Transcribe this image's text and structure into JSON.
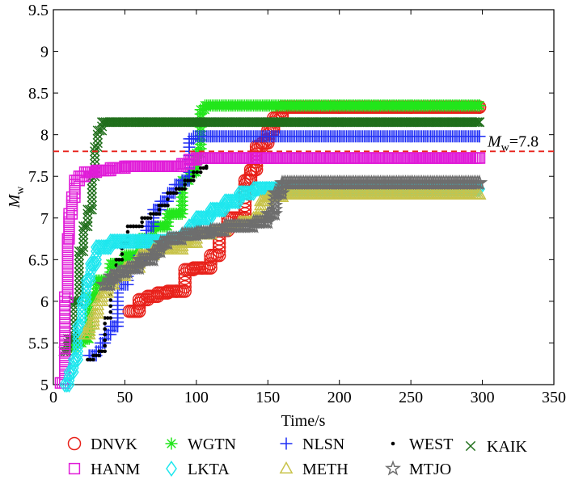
{
  "chart_data": {
    "type": "scatter",
    "title": "",
    "xlabel": "Time/s",
    "ylabel": "Mw",
    "ylabel_main": "M",
    "ylabel_sub": "w",
    "xlim": [
      0,
      350
    ],
    "ylim": [
      5,
      9.5
    ],
    "xticks": [
      0,
      50,
      100,
      150,
      200,
      250,
      300,
      350
    ],
    "yticks": [
      5,
      5.5,
      6,
      6.5,
      7,
      7.5,
      8,
      8.5,
      9,
      9.5
    ],
    "grid": false,
    "reference_line": {
      "y": 7.8,
      "color": "#e8211a",
      "style": "dashed",
      "label": "=7.8",
      "label_main": "M",
      "label_sub": "w"
    },
    "legend_position": "bottom",
    "series": [
      {
        "name": "DNVK",
        "marker": "circle",
        "color": "#e8211a",
        "x": [
          53,
          60,
          66,
          73,
          80,
          86,
          92,
          98,
          104,
          110,
          116,
          122,
          128,
          134,
          138,
          142,
          146,
          150,
          154,
          160,
          200,
          250,
          298
        ],
        "y": [
          5.88,
          6.02,
          6.06,
          6.1,
          6.12,
          6.12,
          6.38,
          6.4,
          6.4,
          6.55,
          6.85,
          7.0,
          7.0,
          7.45,
          7.58,
          7.86,
          7.9,
          8.05,
          8.2,
          8.33,
          8.33,
          8.33,
          8.33
        ]
      },
      {
        "name": "WGTN",
        "marker": "asterisk",
        "color": "#22e61b",
        "x": [
          10,
          15,
          20,
          25,
          30,
          40,
          50,
          60,
          70,
          80,
          90,
          95,
          100,
          103,
          106,
          120,
          150,
          200,
          250,
          298
        ],
        "y": [
          5.45,
          5.5,
          5.55,
          6.05,
          6.25,
          6.45,
          6.55,
          6.75,
          6.9,
          7.05,
          7.45,
          7.55,
          7.78,
          8.3,
          8.35,
          8.35,
          8.35,
          8.35,
          8.35,
          8.35
        ]
      },
      {
        "name": "NLSN",
        "marker": "plus",
        "color": "#1f2ef5",
        "x": [
          25,
          30,
          33,
          36,
          40,
          45,
          52,
          60,
          65,
          70,
          75,
          80,
          85,
          90,
          95,
          98,
          110,
          150,
          200,
          250,
          298
        ],
        "y": [
          5.35,
          5.4,
          5.5,
          5.6,
          5.7,
          6.2,
          6.4,
          6.55,
          6.9,
          7.1,
          7.2,
          7.3,
          7.4,
          7.45,
          7.95,
          7.98,
          7.98,
          7.98,
          7.98,
          7.98,
          7.98
        ]
      },
      {
        "name": "WEST",
        "marker": "dot",
        "color": "#000000",
        "x": [
          24,
          28,
          32,
          36,
          40,
          44,
          48,
          52,
          56,
          62,
          68,
          74,
          80,
          86,
          92,
          98,
          103,
          107
        ],
        "y": [
          5.3,
          5.35,
          5.4,
          5.8,
          6.3,
          6.5,
          6.7,
          6.9,
          6.9,
          7.0,
          7.05,
          7.15,
          7.3,
          7.35,
          7.45,
          7.55,
          7.6,
          7.62
        ]
      },
      {
        "name": "KAIK",
        "marker": "x",
        "color": "#1f6e1a",
        "x": [
          7,
          10,
          14,
          18,
          21,
          24,
          27,
          29,
          31,
          34,
          60,
          100,
          150,
          200,
          250,
          298
        ],
        "y": [
          5.4,
          5.55,
          6.0,
          6.6,
          6.9,
          7.1,
          7.5,
          7.85,
          8.05,
          8.15,
          8.15,
          8.15,
          8.15,
          8.15,
          8.15,
          8.15
        ]
      },
      {
        "name": "HANM",
        "marker": "square",
        "color": "#e01bd8",
        "x": [
          5,
          8,
          10,
          11,
          13,
          15,
          18,
          22,
          30,
          40,
          50,
          60,
          70,
          80,
          90,
          95,
          100,
          150,
          200,
          250,
          298
        ],
        "y": [
          5.02,
          6.05,
          6.75,
          7.05,
          7.25,
          7.45,
          7.5,
          7.55,
          7.57,
          7.6,
          7.62,
          7.62,
          7.62,
          7.62,
          7.65,
          7.7,
          7.72,
          7.72,
          7.72,
          7.72,
          7.72
        ]
      },
      {
        "name": "LKTA",
        "marker": "diamond",
        "color": "#1ee7ee",
        "x": [
          8,
          11,
          14,
          17,
          20,
          23,
          26,
          30,
          40,
          50,
          60,
          70,
          80,
          90,
          95,
          100,
          110,
          120,
          130,
          140,
          150,
          200,
          250,
          298
        ],
        "y": [
          5.0,
          5.15,
          5.3,
          5.7,
          6.0,
          6.25,
          6.45,
          6.65,
          6.72,
          6.72,
          6.72,
          6.72,
          6.75,
          6.8,
          6.9,
          7.0,
          7.1,
          7.2,
          7.3,
          7.35,
          7.35,
          7.35,
          7.35,
          7.35
        ]
      },
      {
        "name": "METH",
        "marker": "triangle",
        "color": "#c8c34a",
        "x": [
          22,
          25,
          28,
          31,
          34,
          38,
          42,
          50,
          60,
          70,
          80,
          90,
          100,
          110,
          120,
          130,
          140,
          145,
          150,
          160,
          200,
          250,
          298
        ],
        "y": [
          5.6,
          5.72,
          5.85,
          6.0,
          6.1,
          6.2,
          6.3,
          6.4,
          6.55,
          6.62,
          6.62,
          6.7,
          6.8,
          6.85,
          6.9,
          6.95,
          7.0,
          7.2,
          7.25,
          7.28,
          7.28,
          7.28,
          7.28
        ]
      },
      {
        "name": "MTJO",
        "marker": "star",
        "color": "#6e6e6e",
        "x": [
          35,
          40,
          45,
          52,
          60,
          70,
          75,
          80,
          90,
          100,
          110,
          120,
          130,
          140,
          150,
          155,
          160,
          200,
          250,
          298
        ],
        "y": [
          6.2,
          6.3,
          6.35,
          6.4,
          6.5,
          6.6,
          6.7,
          6.75,
          6.8,
          6.82,
          6.85,
          6.9,
          6.9,
          6.95,
          7.05,
          7.3,
          7.42,
          7.42,
          7.42,
          7.42
        ]
      }
    ]
  }
}
